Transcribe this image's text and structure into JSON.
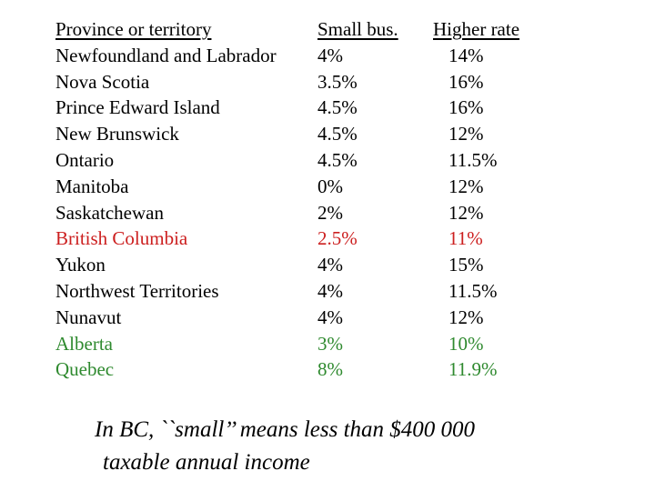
{
  "table": {
    "headers": {
      "province": "Province or territory",
      "small": "Small bus.",
      "higher": "Higher rate"
    },
    "rows": [
      {
        "province": "Newfoundland and Labrador",
        "small": "4%",
        "higher": "14%",
        "color": "black"
      },
      {
        "province": "Nova Scotia",
        "small": "3.5%",
        "higher": "16%",
        "color": "black"
      },
      {
        "province": "Prince Edward Island",
        "small": "4.5%",
        "higher": "16%",
        "color": "black"
      },
      {
        "province": "New Brunswick",
        "small": "4.5%",
        "higher": "12%",
        "color": "black"
      },
      {
        "province": "Ontario",
        "small": "4.5%",
        "higher": "11.5%",
        "color": "black"
      },
      {
        "province": "Manitoba",
        "small": "0%",
        "higher": "12%",
        "color": "black"
      },
      {
        "province": "Saskatchewan",
        "small": "2%",
        "higher": "12%",
        "color": "black"
      },
      {
        "province": "British Columbia",
        "small": "2.5%",
        "higher": "11%",
        "color": "red"
      },
      {
        "province": "Yukon",
        "small": "4%",
        "higher": "15%",
        "color": "black"
      },
      {
        "province": "Northwest Territories",
        "small": "4%",
        "higher": "11.5%",
        "color": "black"
      },
      {
        "province": "Nunavut",
        "small": "4%",
        "higher": "12%",
        "color": "black"
      },
      {
        "province": "Alberta",
        "small": "3%",
        "higher": "10%",
        "color": "green"
      },
      {
        "province": "Quebec",
        "small": "8%",
        "higher": "11.9%",
        "color": "green"
      }
    ]
  },
  "colors": {
    "text": "#000000",
    "highlight_red": "#cc1f1f",
    "highlight_green": "#2f8a2f"
  },
  "footnote": {
    "line1": "In BC, ``small’’ means less than $400 000",
    "line2": "taxable annual income"
  }
}
